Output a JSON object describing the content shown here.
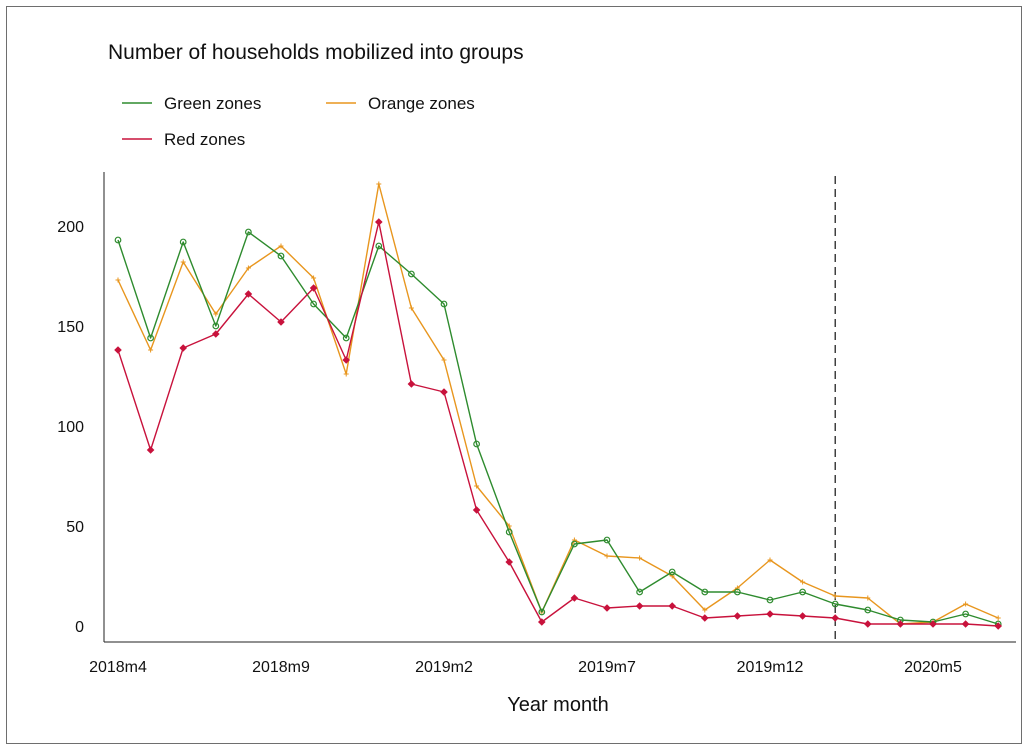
{
  "chart_data": {
    "type": "line",
    "title": "Number of households mobilized into groups",
    "xlabel": "Year month",
    "ylabel": "",
    "ylim": [
      -8,
      228
    ],
    "yticks": [
      0,
      50,
      100,
      150,
      200
    ],
    "x_tick_labels": [
      {
        "index": 0,
        "label": "2018m4"
      },
      {
        "index": 5,
        "label": "2018m9"
      },
      {
        "index": 10,
        "label": "2019m2"
      },
      {
        "index": 15,
        "label": "2019m7"
      },
      {
        "index": 20,
        "label": "2019m12"
      },
      {
        "index": 25,
        "label": "2020m5"
      }
    ],
    "categories": [
      "2018m4",
      "2018m5",
      "2018m6",
      "2018m7",
      "2018m8",
      "2018m9",
      "2018m10",
      "2018m11",
      "2018m12",
      "2019m1",
      "2019m2",
      "2019m3",
      "2019m4",
      "2019m5",
      "2019m6",
      "2019m7",
      "2019m8",
      "2019m9",
      "2019m10",
      "2019m11",
      "2019m12",
      "2020m1",
      "2020m2",
      "2020m3",
      "2020m4",
      "2020m5",
      "2020m6",
      "2020m7"
    ],
    "reference_line": {
      "at": "2020m2",
      "style": "dashed"
    },
    "legend_placement": "top-left",
    "grid": false,
    "series": [
      {
        "name": "Green zones",
        "color": "#2e8b2e",
        "marker": "open-circle",
        "values": [
          193,
          144,
          192,
          150,
          197,
          185,
          161,
          144,
          190,
          176,
          161,
          91,
          47,
          7,
          41,
          43,
          17,
          27,
          17,
          17,
          13,
          17,
          11,
          8,
          3,
          2,
          6,
          1
        ]
      },
      {
        "name": "Orange zones",
        "color": "#e8961e",
        "marker": "plus",
        "values": [
          173,
          138,
          182,
          156,
          179,
          190,
          174,
          126,
          221,
          159,
          133,
          70,
          50,
          7,
          43,
          35,
          34,
          25,
          8,
          19,
          33,
          22,
          15,
          14,
          1,
          2,
          11,
          4
        ]
      },
      {
        "name": "Red zones",
        "color": "#c8123c",
        "marker": "diamond",
        "values": [
          138,
          88,
          139,
          146,
          166,
          152,
          169,
          133,
          202,
          121,
          117,
          58,
          32,
          2,
          14,
          9,
          10,
          10,
          4,
          5,
          6,
          5,
          4,
          1,
          1,
          1,
          1,
          0
        ]
      }
    ]
  }
}
